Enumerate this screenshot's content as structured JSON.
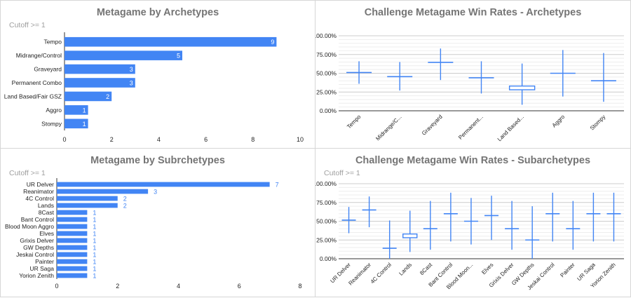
{
  "colors": {
    "accent": "#4285f4",
    "text": "#222222",
    "axis": "#333333",
    "grid": "#cccccc",
    "title": "#757575",
    "subtitle": "#9e9e9e"
  },
  "panels": [
    {
      "title": "Metagame by Archetypes",
      "subtitle": "Cutoff >= 1"
    },
    {
      "title": "Challenge Metagame Win Rates - Archetypes",
      "subtitle": ""
    },
    {
      "title": "Metagame by Subrchetypes",
      "subtitle": "Cutoff >= 1"
    },
    {
      "title": "Challenge Metagame Win Rates - Subarchetypes",
      "subtitle": "Cutoff >= 1"
    }
  ],
  "chart_data": [
    {
      "type": "bar",
      "orientation": "horizontal",
      "title": "Metagame by Archetypes",
      "subtitle": "Cutoff >= 1",
      "categories": [
        "Tempo",
        "Midrange/Control",
        "Graveyard",
        "Permanent Combo",
        "Land Based/Fair GSZ",
        "Aggro",
        "Stompy"
      ],
      "values": [
        9,
        5,
        3,
        3,
        2,
        1,
        1
      ],
      "xlim": [
        0,
        10
      ],
      "xticks": [
        "0",
        "2",
        "4",
        "6",
        "8",
        "10"
      ],
      "data_labels": "inside-end",
      "grid": false
    },
    {
      "type": "candlestick",
      "title": "Challenge Metagame Win Rates - Archetypes",
      "categories": [
        "Tempo",
        "Midrange/C...",
        "Graveyard",
        "Permanent...",
        "Land Based...",
        "Aggro",
        "Stompy"
      ],
      "low": [
        0.36,
        0.27,
        0.41,
        0.23,
        0.08,
        0.19,
        0.12
      ],
      "open": [
        0.51,
        0.455,
        0.645,
        0.44,
        0.33,
        0.5,
        0.4
      ],
      "close": [
        0.51,
        0.455,
        0.645,
        0.44,
        0.28,
        0.5,
        0.4
      ],
      "high": [
        0.66,
        0.65,
        0.83,
        0.66,
        0.63,
        0.81,
        0.77
      ],
      "ylim": [
        0,
        1
      ],
      "yticks": [
        "0.00%",
        "25.00%",
        "50.00%",
        "75.00%",
        "100.00%"
      ],
      "grid": true
    },
    {
      "type": "bar",
      "orientation": "horizontal",
      "title": "Metagame by Subrchetypes",
      "subtitle": "Cutoff >= 1",
      "categories": [
        "UR Delver",
        "Reanimator",
        "4C Control",
        "Lands",
        "8Cast",
        "Bant Control",
        "Blood Moon Aggro",
        "Elves",
        "Grixis Delver",
        "GW Depths",
        "Jeskai Control",
        "Painter",
        "UR Saga",
        "Yorion Zenith"
      ],
      "values": [
        7,
        3,
        2,
        2,
        1,
        1,
        1,
        1,
        1,
        1,
        1,
        1,
        1,
        1
      ],
      "xlim": [
        0,
        8
      ],
      "xticks": [
        "0",
        "2",
        "4",
        "6",
        "8"
      ],
      "data_labels": "outside-end",
      "grid": false
    },
    {
      "type": "candlestick",
      "title": "Challenge Metagame Win Rates - Subarchetypes",
      "subtitle": "Cutoff >= 1",
      "categories": [
        "UR Delver",
        "Reanimator",
        "4C Control",
        "Lands",
        "8Cast",
        "Bant Control",
        "Blood Moon...",
        "Elves",
        "Grixis Delver",
        "GW Depths",
        "Jeskai Control",
        "Painter",
        "UR Saga",
        "Yorion Zenith"
      ],
      "low": [
        0.34,
        0.42,
        0.0,
        0.09,
        0.12,
        0.23,
        0.19,
        0.25,
        0.12,
        0.0,
        0.23,
        0.12,
        0.23,
        0.23
      ],
      "open": [
        0.515,
        0.65,
        0.14,
        0.33,
        0.4,
        0.6,
        0.5,
        0.575,
        0.4,
        0.25,
        0.6,
        0.4,
        0.6,
        0.6
      ],
      "close": [
        0.515,
        0.65,
        0.14,
        0.28,
        0.4,
        0.6,
        0.5,
        0.575,
        0.4,
        0.25,
        0.6,
        0.4,
        0.6,
        0.6
      ],
      "high": [
        0.69,
        0.83,
        0.51,
        0.64,
        0.77,
        0.88,
        0.81,
        0.84,
        0.77,
        0.7,
        0.88,
        0.77,
        0.88,
        0.88
      ],
      "ylim": [
        0,
        1
      ],
      "yticks": [
        "0.00%",
        "25.00%",
        "50.00%",
        "75.00%",
        "100.00%"
      ],
      "grid": true
    }
  ]
}
